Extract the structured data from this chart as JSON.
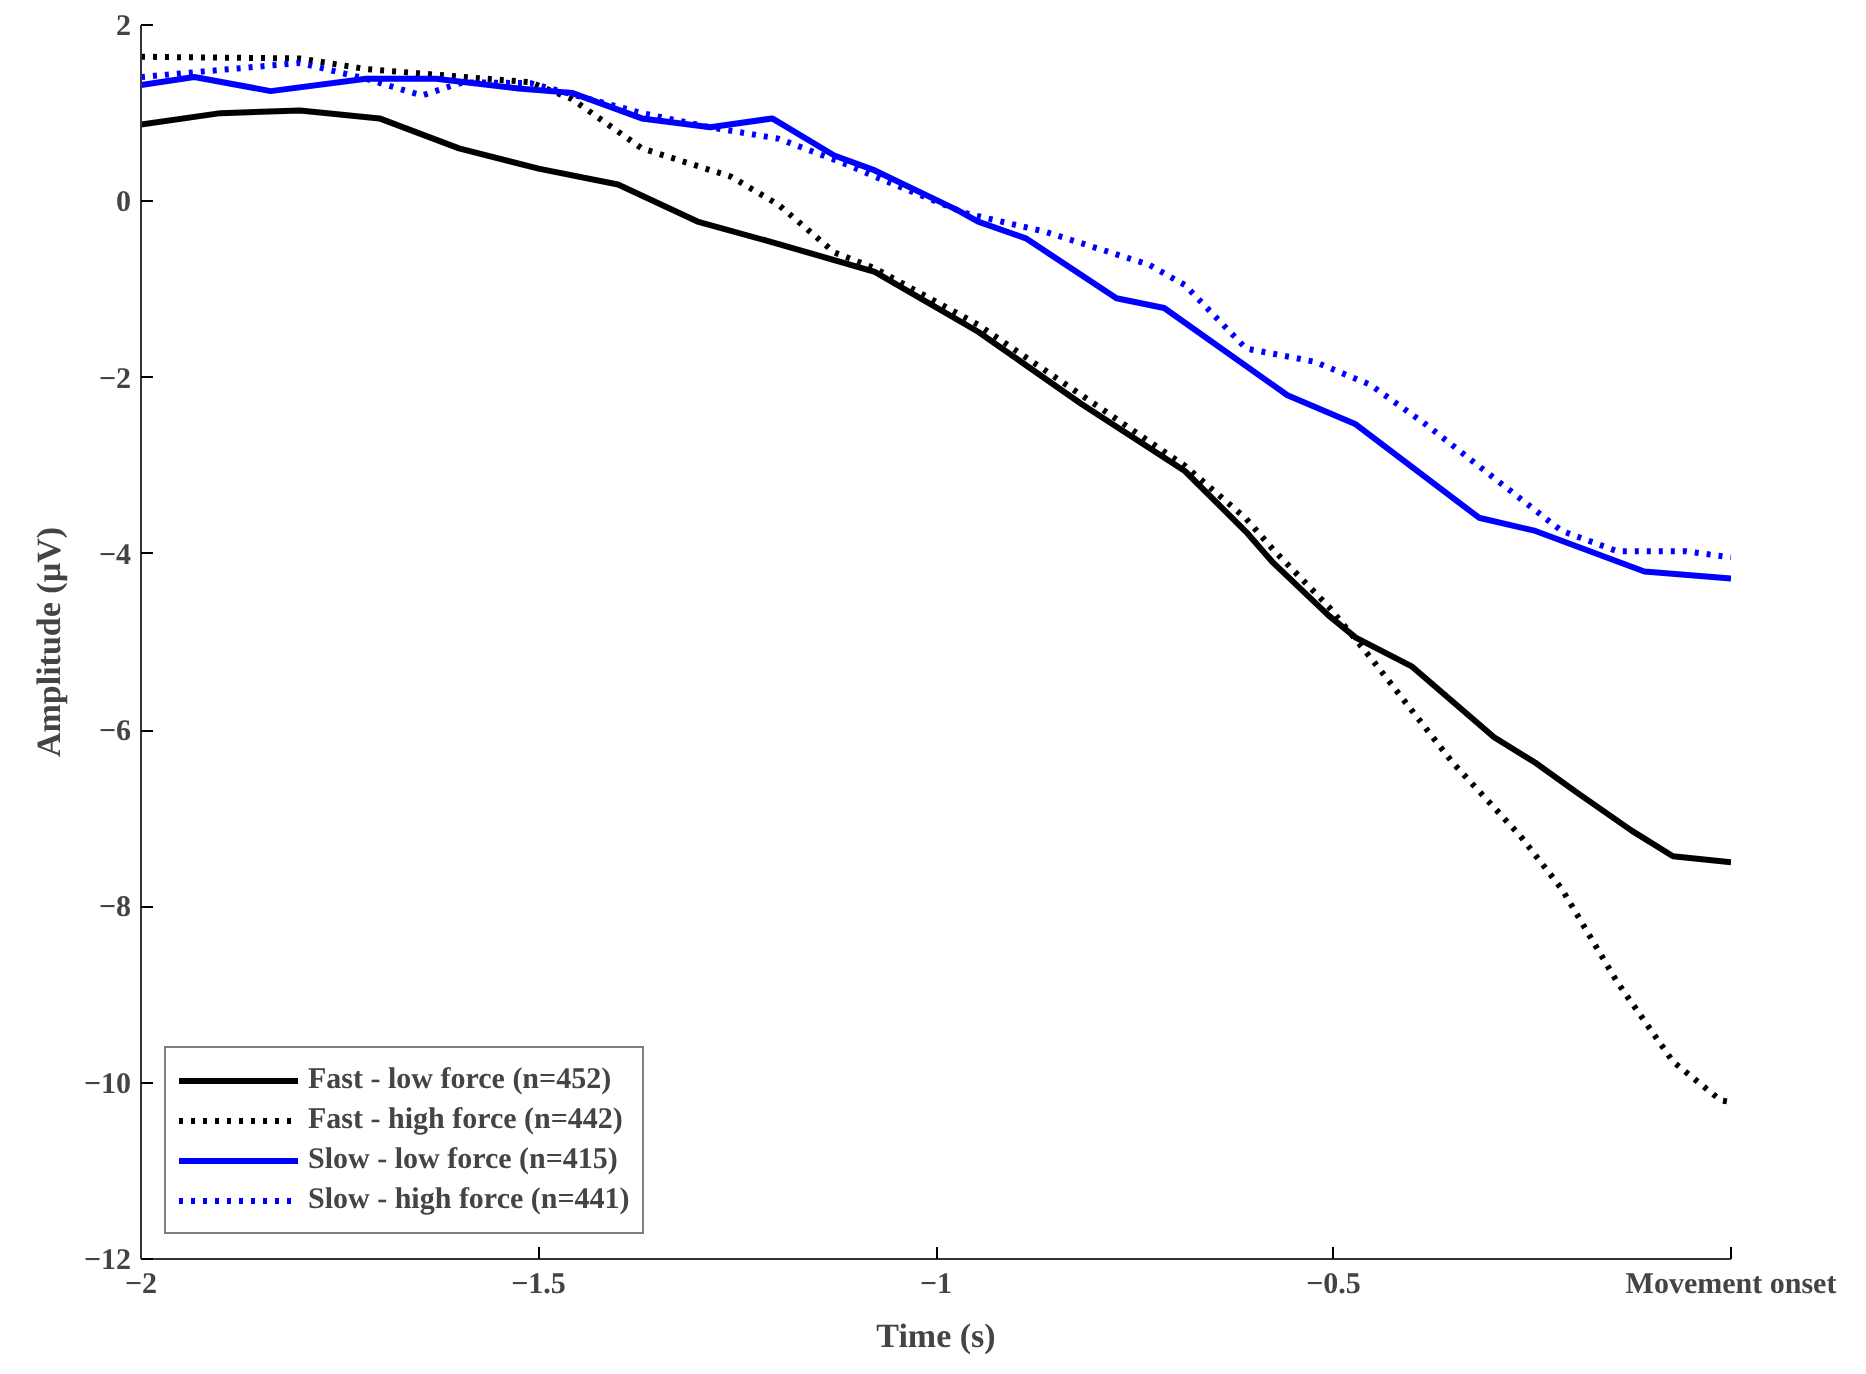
{
  "chart_data": {
    "type": "line",
    "xlabel": "Time (s)",
    "ylabel": "Amplitude (µV)",
    "xlim": [
      -2,
      0
    ],
    "ylim": [
      -12,
      2
    ],
    "xticks": [
      -2,
      -1.5,
      -1,
      -0.5,
      {
        "value": 0,
        "label": "Movement onset"
      }
    ],
    "yticks": [
      -12,
      -10,
      -8,
      -6,
      -4,
      -2,
      0,
      2
    ],
    "grid": false,
    "legend": "bottom left",
    "series": [
      {
        "name": "Fast - low force (n=452)",
        "color": "#000000",
        "line_style": "solid",
        "x": [
          -2,
          -1.9,
          -1.8,
          -1.7,
          -1.6,
          -1.5,
          -1.4,
          -1.3,
          -1.2,
          -1.077,
          -0.947,
          -0.817,
          -0.687,
          -0.61,
          -0.576,
          -0.506,
          -0.472,
          -0.401,
          -0.298,
          -0.246,
          -0.195,
          -0.125,
          -0.073,
          0
        ],
        "values": [
          0.87,
          1.0,
          1.03,
          0.94,
          0.6,
          0.37,
          0.19,
          -0.23,
          -0.48,
          -0.8,
          -1.48,
          -2.3,
          -3.06,
          -3.75,
          -4.1,
          -4.7,
          -4.95,
          -5.28,
          -6.08,
          -6.37,
          -6.7,
          -7.14,
          -7.43,
          -7.5
        ]
      },
      {
        "name": "Fast - high force (n=442)",
        "color": "#000000",
        "line_style": "dotted",
        "x": [
          -2,
          -1.8,
          -1.717,
          -1.51,
          -1.458,
          -1.37,
          -1.258,
          -1.198,
          -1.128,
          -1.077,
          -0.947,
          -0.817,
          -0.687,
          -0.61,
          -0.576,
          -0.506,
          -0.454,
          -0.35,
          -0.265,
          -0.213,
          -0.143,
          -0.073,
          -0.013,
          0
        ],
        "values": [
          1.64,
          1.62,
          1.5,
          1.35,
          1.16,
          0.6,
          0.28,
          -0.04,
          -0.58,
          -0.76,
          -1.4,
          -2.2,
          -3.0,
          -3.6,
          -3.95,
          -4.6,
          -5.17,
          -6.37,
          -7.2,
          -7.8,
          -8.86,
          -9.76,
          -10.2,
          -10.22
        ]
      },
      {
        "name": "Slow - low force (n=415)",
        "color": "#0000ff",
        "line_style": "solid",
        "x": [
          -2,
          -1.933,
          -1.837,
          -1.717,
          -1.629,
          -1.525,
          -1.458,
          -1.37,
          -1.284,
          -1.206,
          -1.128,
          -1.077,
          -0.973,
          -0.947,
          -0.887,
          -0.773,
          -0.713,
          -0.558,
          -0.472,
          -0.317,
          -0.246,
          -0.109,
          0
        ],
        "values": [
          1.32,
          1.41,
          1.25,
          1.39,
          1.39,
          1.28,
          1.23,
          0.94,
          0.84,
          0.94,
          0.52,
          0.35,
          -0.1,
          -0.23,
          -0.42,
          -1.1,
          -1.21,
          -2.2,
          -2.53,
          -3.59,
          -3.74,
          -4.2,
          -4.28
        ]
      },
      {
        "name": "Slow - high force (n=441)",
        "color": "#0000ff",
        "line_style": "dotted",
        "x": [
          -2,
          -1.8,
          -1.717,
          -1.647,
          -1.595,
          -1.51,
          -1.37,
          -1.284,
          -1.198,
          -1.11,
          -1.077,
          -0.965,
          -0.861,
          -0.732,
          -0.687,
          -0.61,
          -0.524,
          -0.454,
          -0.384,
          -0.298,
          -0.213,
          -0.143,
          -0.057,
          0
        ],
        "values": [
          1.41,
          1.57,
          1.39,
          1.2,
          1.35,
          1.34,
          1.0,
          0.84,
          0.71,
          0.41,
          0.28,
          -0.13,
          -0.35,
          -0.72,
          -0.95,
          -1.67,
          -1.82,
          -2.08,
          -2.53,
          -3.14,
          -3.74,
          -3.97,
          -3.97,
          -4.04
        ]
      }
    ]
  }
}
